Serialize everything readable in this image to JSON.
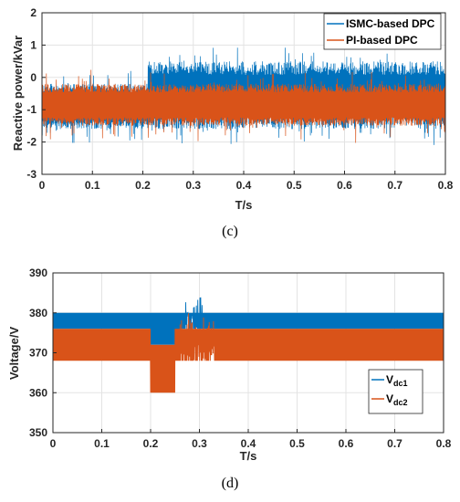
{
  "charts": [
    {
      "caption": "(c)",
      "chart_data": {
        "type": "line",
        "xlabel": "T/s",
        "ylabel": "Reactive power/kVar",
        "xlim": [
          0,
          0.8
        ],
        "ylim": [
          -3,
          2
        ],
        "xticks": [
          "0",
          "0.1",
          "0.2",
          "0.3",
          "0.4",
          "0.5",
          "0.6",
          "0.7",
          "0.8"
        ],
        "yticks": [
          "-3",
          "-2",
          "-1",
          "0",
          "1",
          "2"
        ],
        "grid": true,
        "legend_position": "top-right",
        "series": [
          {
            "name": "ISMC-based DPC",
            "color": "#0072BD",
            "segments": [
              {
                "x_start": 0,
                "x_end": 0.21,
                "y_mean": -0.9,
                "y_band": [
                  -1.6,
                  -0.2
                ]
              },
              {
                "x_start": 0.21,
                "x_end": 0.8,
                "y_mean": -0.6,
                "y_band": [
                  -1.6,
                  0.5
                ]
              }
            ]
          },
          {
            "name": "PI-based DPC",
            "color": "#D95319",
            "segments": [
              {
                "x_start": 0,
                "x_end": 0.8,
                "y_mean": -0.85,
                "y_band": [
                  -1.5,
                  -0.2
                ]
              }
            ]
          }
        ]
      }
    },
    {
      "caption": "(d)",
      "chart_data": {
        "type": "line",
        "xlabel": "T/s",
        "ylabel": "Voltage/V",
        "xlim": [
          0,
          0.8
        ],
        "ylim": [
          350,
          390
        ],
        "xticks": [
          "0",
          "0.1",
          "0.2",
          "0.3",
          "0.4",
          "0.5",
          "0.6",
          "0.7",
          "0.8"
        ],
        "yticks": [
          "350",
          "360",
          "370",
          "380",
          "390"
        ],
        "grid": true,
        "legend_position": "bottom-right",
        "series": [
          {
            "name": "V",
            "subscript": "dc1",
            "color": "#0072BD",
            "band": [
              376,
              380
            ],
            "dip": {
              "x": [
                0.2,
                0.26
              ],
              "band": [
                372,
                380
              ]
            }
          },
          {
            "name": "V",
            "subscript": "dc2",
            "color": "#D95319",
            "band": [
              368,
              376
            ],
            "dip": {
              "x": [
                0.2,
                0.25
              ],
              "band": [
                360,
                372
              ]
            }
          }
        ]
      }
    }
  ]
}
